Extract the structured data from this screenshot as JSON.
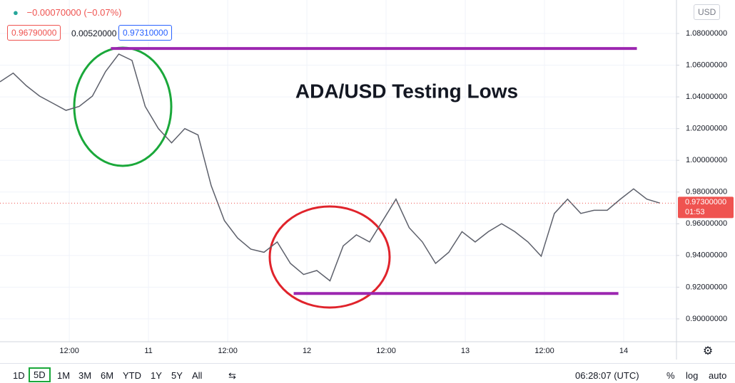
{
  "header": {
    "change": "−0.00070000 (−0.07%)",
    "values": [
      "0.96790000",
      "0.00520000",
      "0.97310000"
    ],
    "currency": "USD"
  },
  "toolbar": {
    "ranges": [
      "1D",
      "5D",
      "1M",
      "3M",
      "6M",
      "YTD",
      "1Y",
      "5Y",
      "All"
    ],
    "clock": "06:28:07 (UTC)",
    "options": [
      "%",
      "log",
      "auto"
    ]
  },
  "chart_data": {
    "type": "line",
    "title": "ADA/USD Testing Lows",
    "x": [
      0,
      2,
      4,
      6,
      8,
      10,
      12,
      14,
      16,
      18,
      20,
      22,
      24,
      26,
      28,
      30,
      32,
      34,
      36,
      38,
      40,
      42,
      44,
      46,
      48,
      50,
      52,
      54,
      56,
      58,
      60,
      62,
      64,
      66,
      68,
      70,
      72,
      74,
      76,
      78,
      80,
      82,
      84,
      86,
      88,
      90,
      92,
      94,
      96,
      98,
      100
    ],
    "series": [
      {
        "color": "#5d606b",
        "values": [
          1.0495,
          1.055,
          1.047,
          1.0405,
          1.036,
          1.0315,
          1.034,
          1.0405,
          1.056,
          1.067,
          1.063,
          1.034,
          1.02,
          1.011,
          1.02,
          1.016,
          0.984,
          0.962,
          0.951,
          0.944,
          0.942,
          0.9485,
          0.935,
          0.928,
          0.9305,
          0.924,
          0.946,
          0.953,
          0.9485,
          0.962,
          0.9755,
          0.9575,
          0.9485,
          0.935,
          0.942,
          0.955,
          0.9485,
          0.955,
          0.96,
          0.955,
          0.9485,
          0.9395,
          0.9665,
          0.9755,
          0.9665,
          0.9685,
          0.9685,
          0.9755,
          0.982,
          0.9755,
          0.973
        ]
      }
    ],
    "xlim": [
      0,
      102.5
    ],
    "xticks": [
      {
        "value": 10.5,
        "label": "12:00"
      },
      {
        "value": 22.5,
        "label": "11"
      },
      {
        "value": 34.5,
        "label": "12:00"
      },
      {
        "value": 46.5,
        "label": "12"
      },
      {
        "value": 58.5,
        "label": "12:00"
      },
      {
        "value": 70.5,
        "label": "13"
      },
      {
        "value": 82.5,
        "label": "12:00"
      },
      {
        "value": 94.5,
        "label": "14"
      }
    ],
    "ylim": [
      0.8856,
      1.1011
    ],
    "yticks": [
      {
        "value": 0.9,
        "label": "0.90000000"
      },
      {
        "value": 0.92,
        "label": "0.92000000"
      },
      {
        "value": 0.94,
        "label": "0.94000000"
      },
      {
        "value": 0.96,
        "label": "0.96000000"
      },
      {
        "value": 0.98,
        "label": "0.98000000"
      },
      {
        "value": 1.0,
        "label": "1.00000000"
      },
      {
        "value": 1.02,
        "label": "1.02000000"
      },
      {
        "value": 1.04,
        "label": "1.04000000"
      },
      {
        "value": 1.06,
        "label": "1.06000000"
      },
      {
        "value": 1.08,
        "label": "1.08000000"
      }
    ],
    "last_price": {
      "value": 0.973,
      "label": "0.97300000",
      "countdown": "01:53",
      "color": "#ef5350"
    },
    "levels": [
      {
        "value": 1.0705,
        "x": [
          16.8,
          96.5
        ],
        "color": "#9c27b0"
      },
      {
        "value": 0.916,
        "x": [
          44.5,
          93.7
        ],
        "color": "#9c27b0"
      }
    ],
    "grid": true
  }
}
